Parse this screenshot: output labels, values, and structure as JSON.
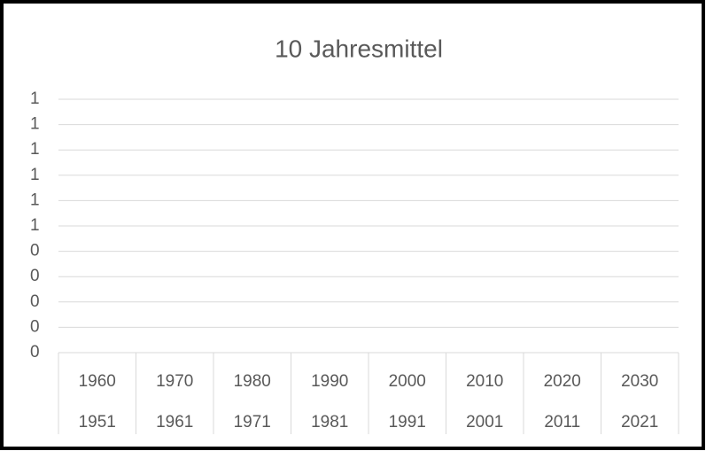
{
  "chart_data": {
    "type": "line",
    "title": "10 Jahresmittel",
    "categories": [
      "1960",
      "1970",
      "1980",
      "1990",
      "2000",
      "2010",
      "2020",
      "2030"
    ],
    "categories_level2": [
      "1951",
      "1961",
      "1971",
      "1981",
      "1991",
      "2001",
      "2011",
      "2021"
    ],
    "series": [],
    "ylim": [
      0,
      1
    ],
    "yticks": [
      0,
      {
        "value": 0.1,
        "label": "0"
      },
      {
        "value": 0.2,
        "label": "0"
      },
      {
        "value": 0.3,
        "label": "0"
      },
      {
        "value": 0.4,
        "label": "0"
      },
      {
        "value": 0.5,
        "label": "1"
      },
      {
        "value": 0.6,
        "label": "1"
      },
      {
        "value": 0.7,
        "label": "1"
      },
      {
        "value": 0.8,
        "label": "1"
      },
      {
        "value": 0.9,
        "label": "1"
      },
      1
    ],
    "grid": true
  }
}
